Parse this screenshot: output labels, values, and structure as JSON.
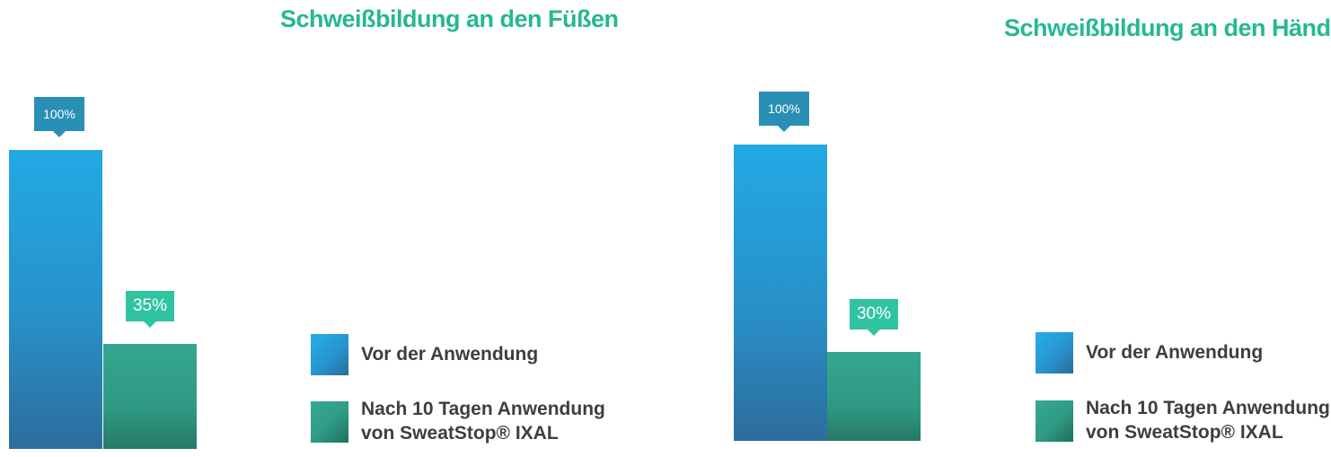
{
  "chart_data": [
    {
      "type": "bar",
      "title": "Schweißbildung an den Füßen",
      "categories": [
        "Vor der Anwendung",
        "Nach 10 Tagen Anwendung von SweatStop® IXAL"
      ],
      "values": [
        100,
        35
      ],
      "value_labels": [
        "100%",
        "35%"
      ],
      "unit": "%",
      "ylim": [
        0,
        100
      ],
      "grid": false,
      "legend_position": "bottom-right",
      "series_colors": [
        "#2391cc",
        "#2f9a83"
      ]
    },
    {
      "type": "bar",
      "title": "Schweißbildung an den Händen",
      "categories": [
        "Vor der Anwendung",
        "Nach 10 Tagen Anwendung von SweatStop® IXAL"
      ],
      "values": [
        100,
        30
      ],
      "value_labels": [
        "100%",
        "30%"
      ],
      "unit": "%",
      "ylim": [
        0,
        100
      ],
      "grid": false,
      "legend_position": "bottom-right",
      "series_colors": [
        "#2391cc",
        "#2f9a83"
      ]
    }
  ],
  "legend": {
    "before_label": "Vor der Anwendung",
    "after_label_line1": "Nach 10 Tagen Anwendung",
    "after_label_line2": "von SweatStop® IXAL"
  },
  "colors": {
    "title": "#25b891",
    "before_bar": "#2391cc",
    "after_bar": "#2f9a83",
    "before_callout": "#2a8fb5",
    "after_callout": "#30c3a2",
    "legend_text": "#3e3e3e"
  }
}
